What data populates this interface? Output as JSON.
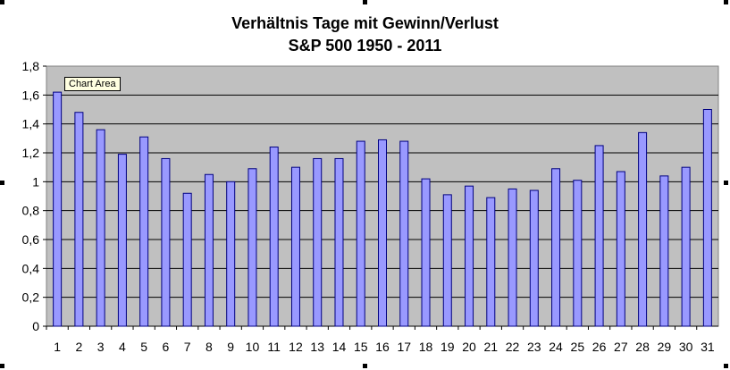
{
  "chart_data": {
    "type": "bar",
    "title": "Verhältnis Tage mit Gewinn/Verlust",
    "subtitle": "S&P 500 1950 - 2011",
    "categories": [
      "1",
      "2",
      "3",
      "4",
      "5",
      "6",
      "7",
      "8",
      "9",
      "10",
      "11",
      "12",
      "13",
      "14",
      "15",
      "16",
      "17",
      "18",
      "19",
      "20",
      "21",
      "22",
      "23",
      "24",
      "25",
      "26",
      "27",
      "28",
      "29",
      "30",
      "31"
    ],
    "values": [
      1.62,
      1.48,
      1.36,
      1.19,
      1.31,
      1.16,
      0.92,
      1.05,
      1.0,
      1.09,
      1.24,
      1.1,
      1.16,
      1.16,
      1.28,
      1.29,
      1.28,
      1.02,
      0.91,
      0.97,
      0.89,
      0.95,
      0.94,
      1.09,
      1.01,
      1.25,
      1.07,
      1.34,
      1.04,
      1.1,
      1.5
    ],
    "ylim": [
      0,
      1.8
    ],
    "yticks": [
      "0",
      "0,2",
      "0,4",
      "0,6",
      "0,8",
      "1",
      "1,2",
      "1,4",
      "1,6",
      "1,8"
    ],
    "grid": true,
    "plot_background": "#c0c0c0",
    "bar_color": "#9999ff",
    "bar_border": "#000080"
  },
  "tooltip": "Chart Area"
}
